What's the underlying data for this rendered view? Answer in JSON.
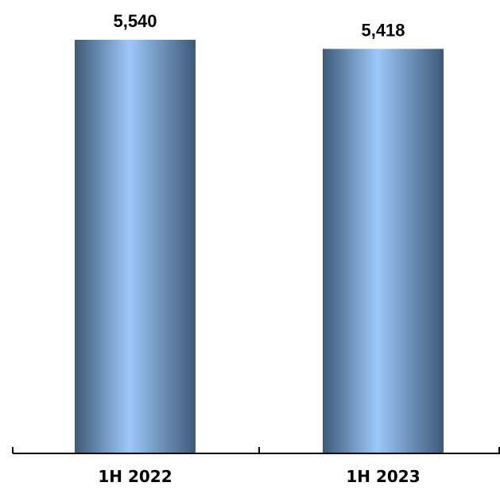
{
  "chart_data": {
    "type": "bar",
    "title": "",
    "xlabel": "",
    "ylabel": "",
    "categories": [
      "1H 2022",
      "1H 2023"
    ],
    "values": [
      5540,
      5418
    ],
    "value_labels": [
      "5,540",
      "5,418"
    ],
    "ylim": [
      0,
      5540
    ],
    "grid": false,
    "legend": "none",
    "bar_colors": {
      "edge": "#3f5a78",
      "center": "#9cc8fa"
    },
    "axis_color": "#000000"
  }
}
